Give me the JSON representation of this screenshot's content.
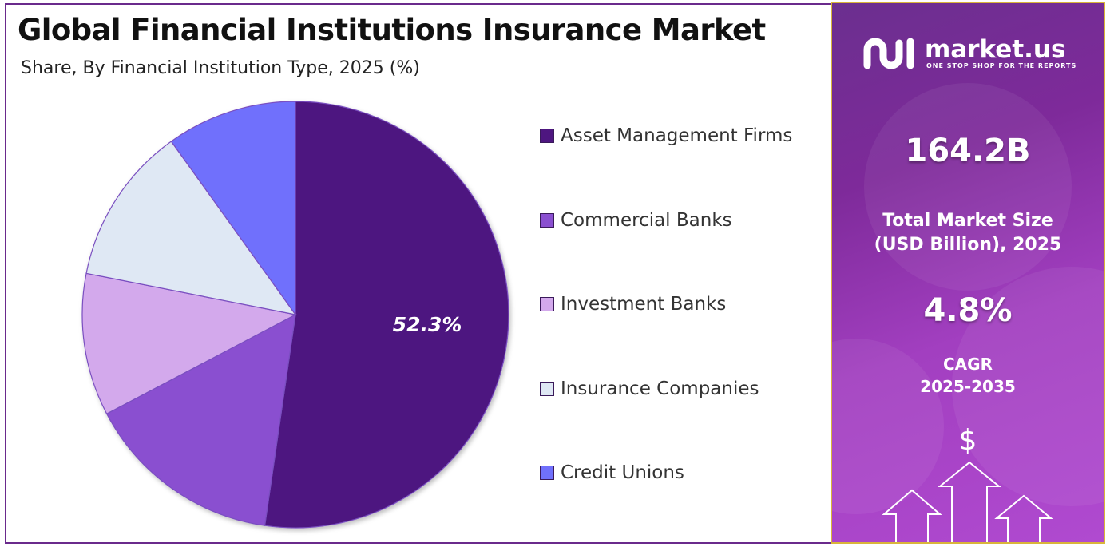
{
  "header": {
    "title": "Global Financial Institutions Insurance Market",
    "subtitle": "Share, By Financial Institution Type, 2025 (%)"
  },
  "chart_data": {
    "type": "pie",
    "title": "Global Financial Institutions Insurance Market",
    "subtitle": "Share, By Financial Institution Type, 2025 (%)",
    "categories": [
      "Asset Management Firms",
      "Commercial Banks",
      "Investment Banks",
      "Insurance Companies",
      "Credit Unions"
    ],
    "values": [
      52.3,
      15.0,
      10.8,
      12.0,
      9.9
    ],
    "colors": [
      "#4e1680",
      "#8a4fd0",
      "#d3a9ec",
      "#dfe8f4",
      "#7070fc"
    ],
    "data_labels": [
      "52.3%",
      "",
      "",
      "",
      ""
    ],
    "legend_position": "right"
  },
  "side_panel": {
    "brand_name": "market.us",
    "brand_tagline": "ONE STOP SHOP FOR THE REPORTS",
    "market_size_value": "164.2B",
    "market_size_label_line1": "Total Market Size",
    "market_size_label_line2": "(USD Billion), 2025",
    "cagr_value": "4.8%",
    "cagr_label_line1": "CAGR",
    "cagr_label_line2": "2025-2035",
    "icons": [
      "market-us-logo-icon",
      "dollar-icon",
      "growth-arrows-icon"
    ]
  }
}
